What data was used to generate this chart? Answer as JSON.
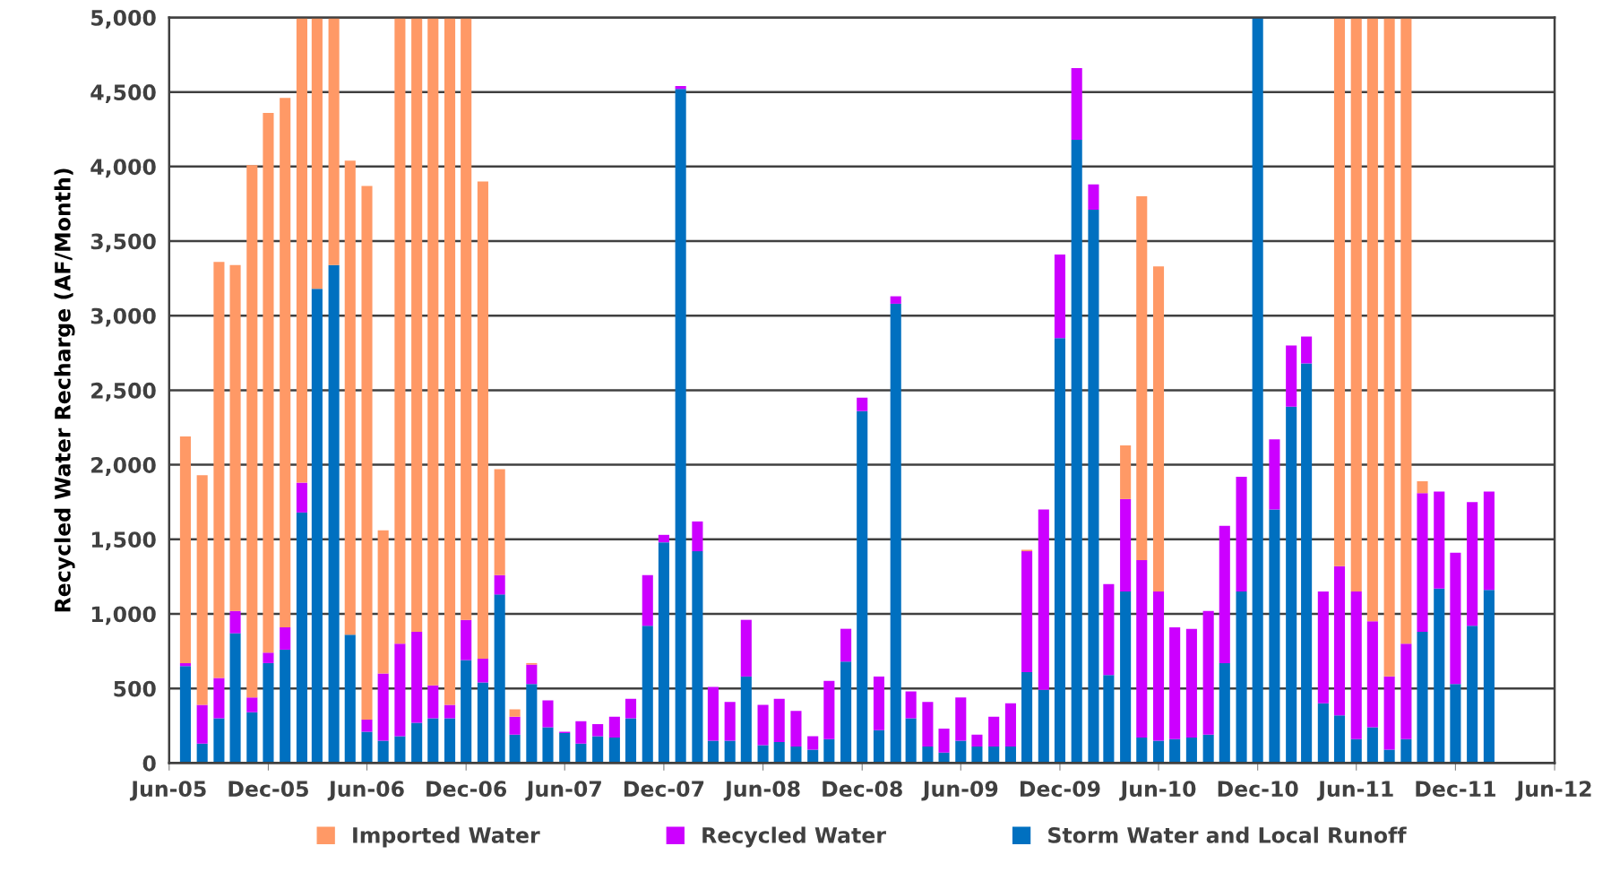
{
  "chart_data": {
    "type": "bar",
    "stacked": true,
    "ylabel": "Recycled Water Recharge (AF/Month)",
    "x": [
      "2005-07",
      "2005-08",
      "2005-09",
      "2005-10",
      "2005-11",
      "2005-12",
      "2006-01",
      "2006-02",
      "2006-03",
      "2006-04",
      "2006-05",
      "2006-06",
      "2006-07",
      "2006-08",
      "2006-09",
      "2006-10",
      "2006-11",
      "2006-12",
      "2007-01",
      "2007-02",
      "2007-03",
      "2007-04",
      "2007-05",
      "2007-06",
      "2007-07",
      "2007-08",
      "2007-09",
      "2007-10",
      "2007-11",
      "2007-12",
      "2008-01",
      "2008-02",
      "2008-03",
      "2008-04",
      "2008-05",
      "2008-06",
      "2008-07",
      "2008-08",
      "2008-09",
      "2008-10",
      "2008-11",
      "2008-12",
      "2009-01",
      "2009-02",
      "2009-03",
      "2009-04",
      "2009-05",
      "2009-06",
      "2009-07",
      "2009-08",
      "2009-09",
      "2009-10",
      "2009-11",
      "2009-12",
      "2010-01",
      "2010-02",
      "2010-03",
      "2010-04",
      "2010-05",
      "2010-06",
      "2010-07",
      "2010-08",
      "2010-09",
      "2010-10",
      "2010-11",
      "2010-12",
      "2011-01",
      "2011-02",
      "2011-03",
      "2011-04",
      "2011-05",
      "2011-06",
      "2011-07",
      "2011-08",
      "2011-09",
      "2011-10",
      "2011-11",
      "2011-12",
      "2012-01",
      "2012-02"
    ],
    "series": [
      {
        "name": "Storm Water and Local Runoff",
        "color": "#0070c0",
        "values": [
          650,
          130,
          300,
          870,
          340,
          670,
          760,
          1680,
          3180,
          3340,
          860,
          210,
          150,
          180,
          270,
          300,
          300,
          690,
          540,
          1130,
          190,
          530,
          240,
          200,
          130,
          180,
          170,
          300,
          920,
          1480,
          4520,
          1420,
          150,
          150,
          580,
          120,
          140,
          110,
          90,
          160,
          680,
          2360,
          220,
          3080,
          300,
          110,
          70,
          150,
          110,
          110,
          110,
          610,
          490,
          2850,
          4180,
          3710,
          590,
          1150,
          170,
          150,
          160,
          170,
          190,
          670,
          1150,
          5000,
          1700,
          2390,
          2680,
          400,
          320,
          160,
          240,
          90,
          160,
          880,
          1170,
          530,
          920,
          1160
        ]
      },
      {
        "name": "Recycled Water",
        "color": "#cc00ff",
        "values": [
          20,
          260,
          270,
          150,
          100,
          70,
          150,
          200,
          0,
          0,
          0,
          80,
          450,
          620,
          610,
          220,
          90,
          270,
          160,
          130,
          120,
          130,
          180,
          10,
          150,
          80,
          140,
          130,
          340,
          50,
          20,
          200,
          360,
          260,
          380,
          270,
          290,
          240,
          90,
          390,
          220,
          90,
          360,
          50,
          180,
          300,
          160,
          290,
          80,
          200,
          290,
          810,
          1210,
          560,
          480,
          170,
          610,
          620,
          1190,
          1000,
          750,
          730,
          830,
          920,
          770,
          0,
          470,
          410,
          180,
          750,
          1000,
          990,
          710,
          490,
          640,
          930,
          650,
          880,
          830,
          660
        ]
      },
      {
        "name": "Imported Water",
        "color": "#ff9966",
        "values": [
          1520,
          1540,
          2790,
          2320,
          3570,
          3620,
          3550,
          3120,
          1820,
          1660,
          3180,
          3580,
          960,
          4200,
          4120,
          4480,
          4610,
          4040,
          3200,
          710,
          50,
          10,
          0,
          0,
          0,
          0,
          0,
          0,
          0,
          0,
          0,
          0,
          0,
          0,
          0,
          0,
          0,
          0,
          0,
          0,
          0,
          0,
          0,
          0,
          0,
          0,
          0,
          0,
          0,
          0,
          0,
          10,
          0,
          0,
          0,
          0,
          0,
          360,
          2440,
          2180,
          0,
          0,
          0,
          0,
          0,
          0,
          0,
          0,
          0,
          0,
          3680,
          3850,
          4050,
          4420,
          4200,
          80,
          0,
          0,
          0,
          0
        ]
      }
    ],
    "xlim": [
      "2005-06",
      "2012-06"
    ],
    "xticks": [
      {
        "value": "2005-06",
        "label": "Jun-05"
      },
      {
        "value": "2005-12",
        "label": "Dec-05"
      },
      {
        "value": "2006-06",
        "label": "Jun-06"
      },
      {
        "value": "2006-12",
        "label": "Dec-06"
      },
      {
        "value": "2007-06",
        "label": "Jun-07"
      },
      {
        "value": "2007-12",
        "label": "Dec-07"
      },
      {
        "value": "2008-06",
        "label": "Jun-08"
      },
      {
        "value": "2008-12",
        "label": "Dec-08"
      },
      {
        "value": "2009-06",
        "label": "Jun-09"
      },
      {
        "value": "2009-12",
        "label": "Dec-09"
      },
      {
        "value": "2010-06",
        "label": "Jun-10"
      },
      {
        "value": "2010-12",
        "label": "Dec-10"
      },
      {
        "value": "2011-06",
        "label": "Jun-11"
      },
      {
        "value": "2011-12",
        "label": "Dec-11"
      },
      {
        "value": "2012-06",
        "label": "Jun-12"
      }
    ],
    "ylim": [
      0,
      5000
    ],
    "yticks": [
      {
        "value": 0,
        "label": "0"
      },
      {
        "value": 500,
        "label": "500"
      },
      {
        "value": 1000,
        "label": "1,000"
      },
      {
        "value": 1500,
        "label": "1,500"
      },
      {
        "value": 2000,
        "label": "2,000"
      },
      {
        "value": 2500,
        "label": "2,500"
      },
      {
        "value": 3000,
        "label": "3,000"
      },
      {
        "value": 3500,
        "label": "3,500"
      },
      {
        "value": 4000,
        "label": "4,000"
      },
      {
        "value": 4500,
        "label": "4,500"
      },
      {
        "value": 5000,
        "label": "5,000"
      }
    ],
    "grid": "y",
    "legend": "bottom"
  }
}
